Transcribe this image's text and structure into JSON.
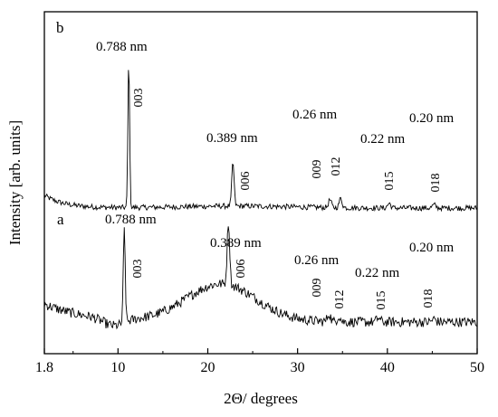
{
  "chart_data": {
    "type": "line",
    "xlabel": "2Θ/ degrees",
    "ylabel": "Intensity [arb. units]",
    "xlim": [
      1.8,
      50
    ],
    "x_ticks": [
      "1.8",
      "10",
      "20",
      "30",
      "40",
      "50"
    ],
    "x_tick_values": [
      1.8,
      10,
      20,
      30,
      40,
      50
    ],
    "grid": false,
    "legend": "none",
    "line_color": "#000000",
    "series": [
      {
        "name": "b",
        "peaks": [
          {
            "two_theta": 11.2,
            "spacing": "0.788 nm",
            "index": "003",
            "height": 0.95
          },
          {
            "two_theta": 22.8,
            "spacing": "0.389 nm",
            "index": "006",
            "height": 0.28
          },
          {
            "two_theta": 33.6,
            "spacing": "0.26 nm",
            "index": "009",
            "height": 0.05
          },
          {
            "two_theta": 34.8,
            "spacing": "",
            "index": "012",
            "height": 0.06
          },
          {
            "two_theta": 40.2,
            "spacing": "0.22 nm",
            "index": "015",
            "height": 0.03
          },
          {
            "two_theta": 45.2,
            "spacing": "0.20 nm",
            "index": "018",
            "height": 0.02
          }
        ]
      },
      {
        "name": "a",
        "peaks": [
          {
            "two_theta": 10.7,
            "spacing": "0.788 nm",
            "index": "003",
            "height": 0.92
          },
          {
            "two_theta": 22.3,
            "spacing": "0.389 nm",
            "index": "006",
            "height": 0.62
          },
          {
            "two_theta": 33.5,
            "spacing": "0.26 nm",
            "index": "009",
            "height": 0.08
          },
          {
            "two_theta": 34.6,
            "spacing": "",
            "index": "012",
            "height": 0.06
          },
          {
            "two_theta": 39.0,
            "spacing": "0.22 nm",
            "index": "015",
            "height": 0.04
          },
          {
            "two_theta": 45.2,
            "spacing": "0.20 nm",
            "index": "018",
            "height": 0.03
          }
        ]
      }
    ]
  }
}
